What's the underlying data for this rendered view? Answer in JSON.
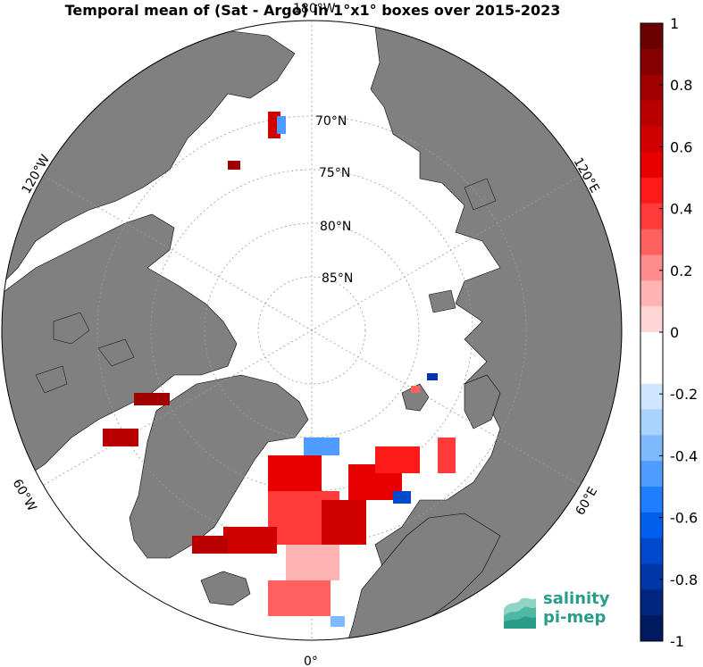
{
  "title": "Temporal mean of (Sat - Argo) in 1°x1° boxes over 2015-2023",
  "map": {
    "projection": "north polar stereographic",
    "longitude_labels": [
      "180°W",
      "120°W",
      "60°W",
      "0°",
      "60°E",
      "120°E"
    ],
    "latitude_labels": [
      "70°N",
      "75°N",
      "80°N",
      "85°N"
    ],
    "land_color": "#808080",
    "ocean_color": "#ffffff"
  },
  "colorbar": {
    "min": -1,
    "max": 1,
    "tick_labels": [
      "1",
      "0.8",
      "0.6",
      "0.4",
      "0.2",
      "0",
      "-0.2",
      "-0.4",
      "-0.6",
      "-0.8",
      "-1"
    ],
    "colors_top_to_bottom": [
      "#6b0000",
      "#850000",
      "#a00000",
      "#b80000",
      "#d00000",
      "#e80000",
      "#ff1a1a",
      "#ff3a3a",
      "#ff6060",
      "#ff8c8c",
      "#ffb4b4",
      "#ffd6d6",
      "#ffffff",
      "#ffffff",
      "#cfe6ff",
      "#a9d2ff",
      "#7fb9ff",
      "#4f9bff",
      "#1f7dff",
      "#0060ee",
      "#0048cc",
      "#0036a8",
      "#002680",
      "#001a60"
    ]
  },
  "logo": {
    "line1": "salinity",
    "line2": "pi-mep",
    "color": "#2a9d8a"
  }
}
